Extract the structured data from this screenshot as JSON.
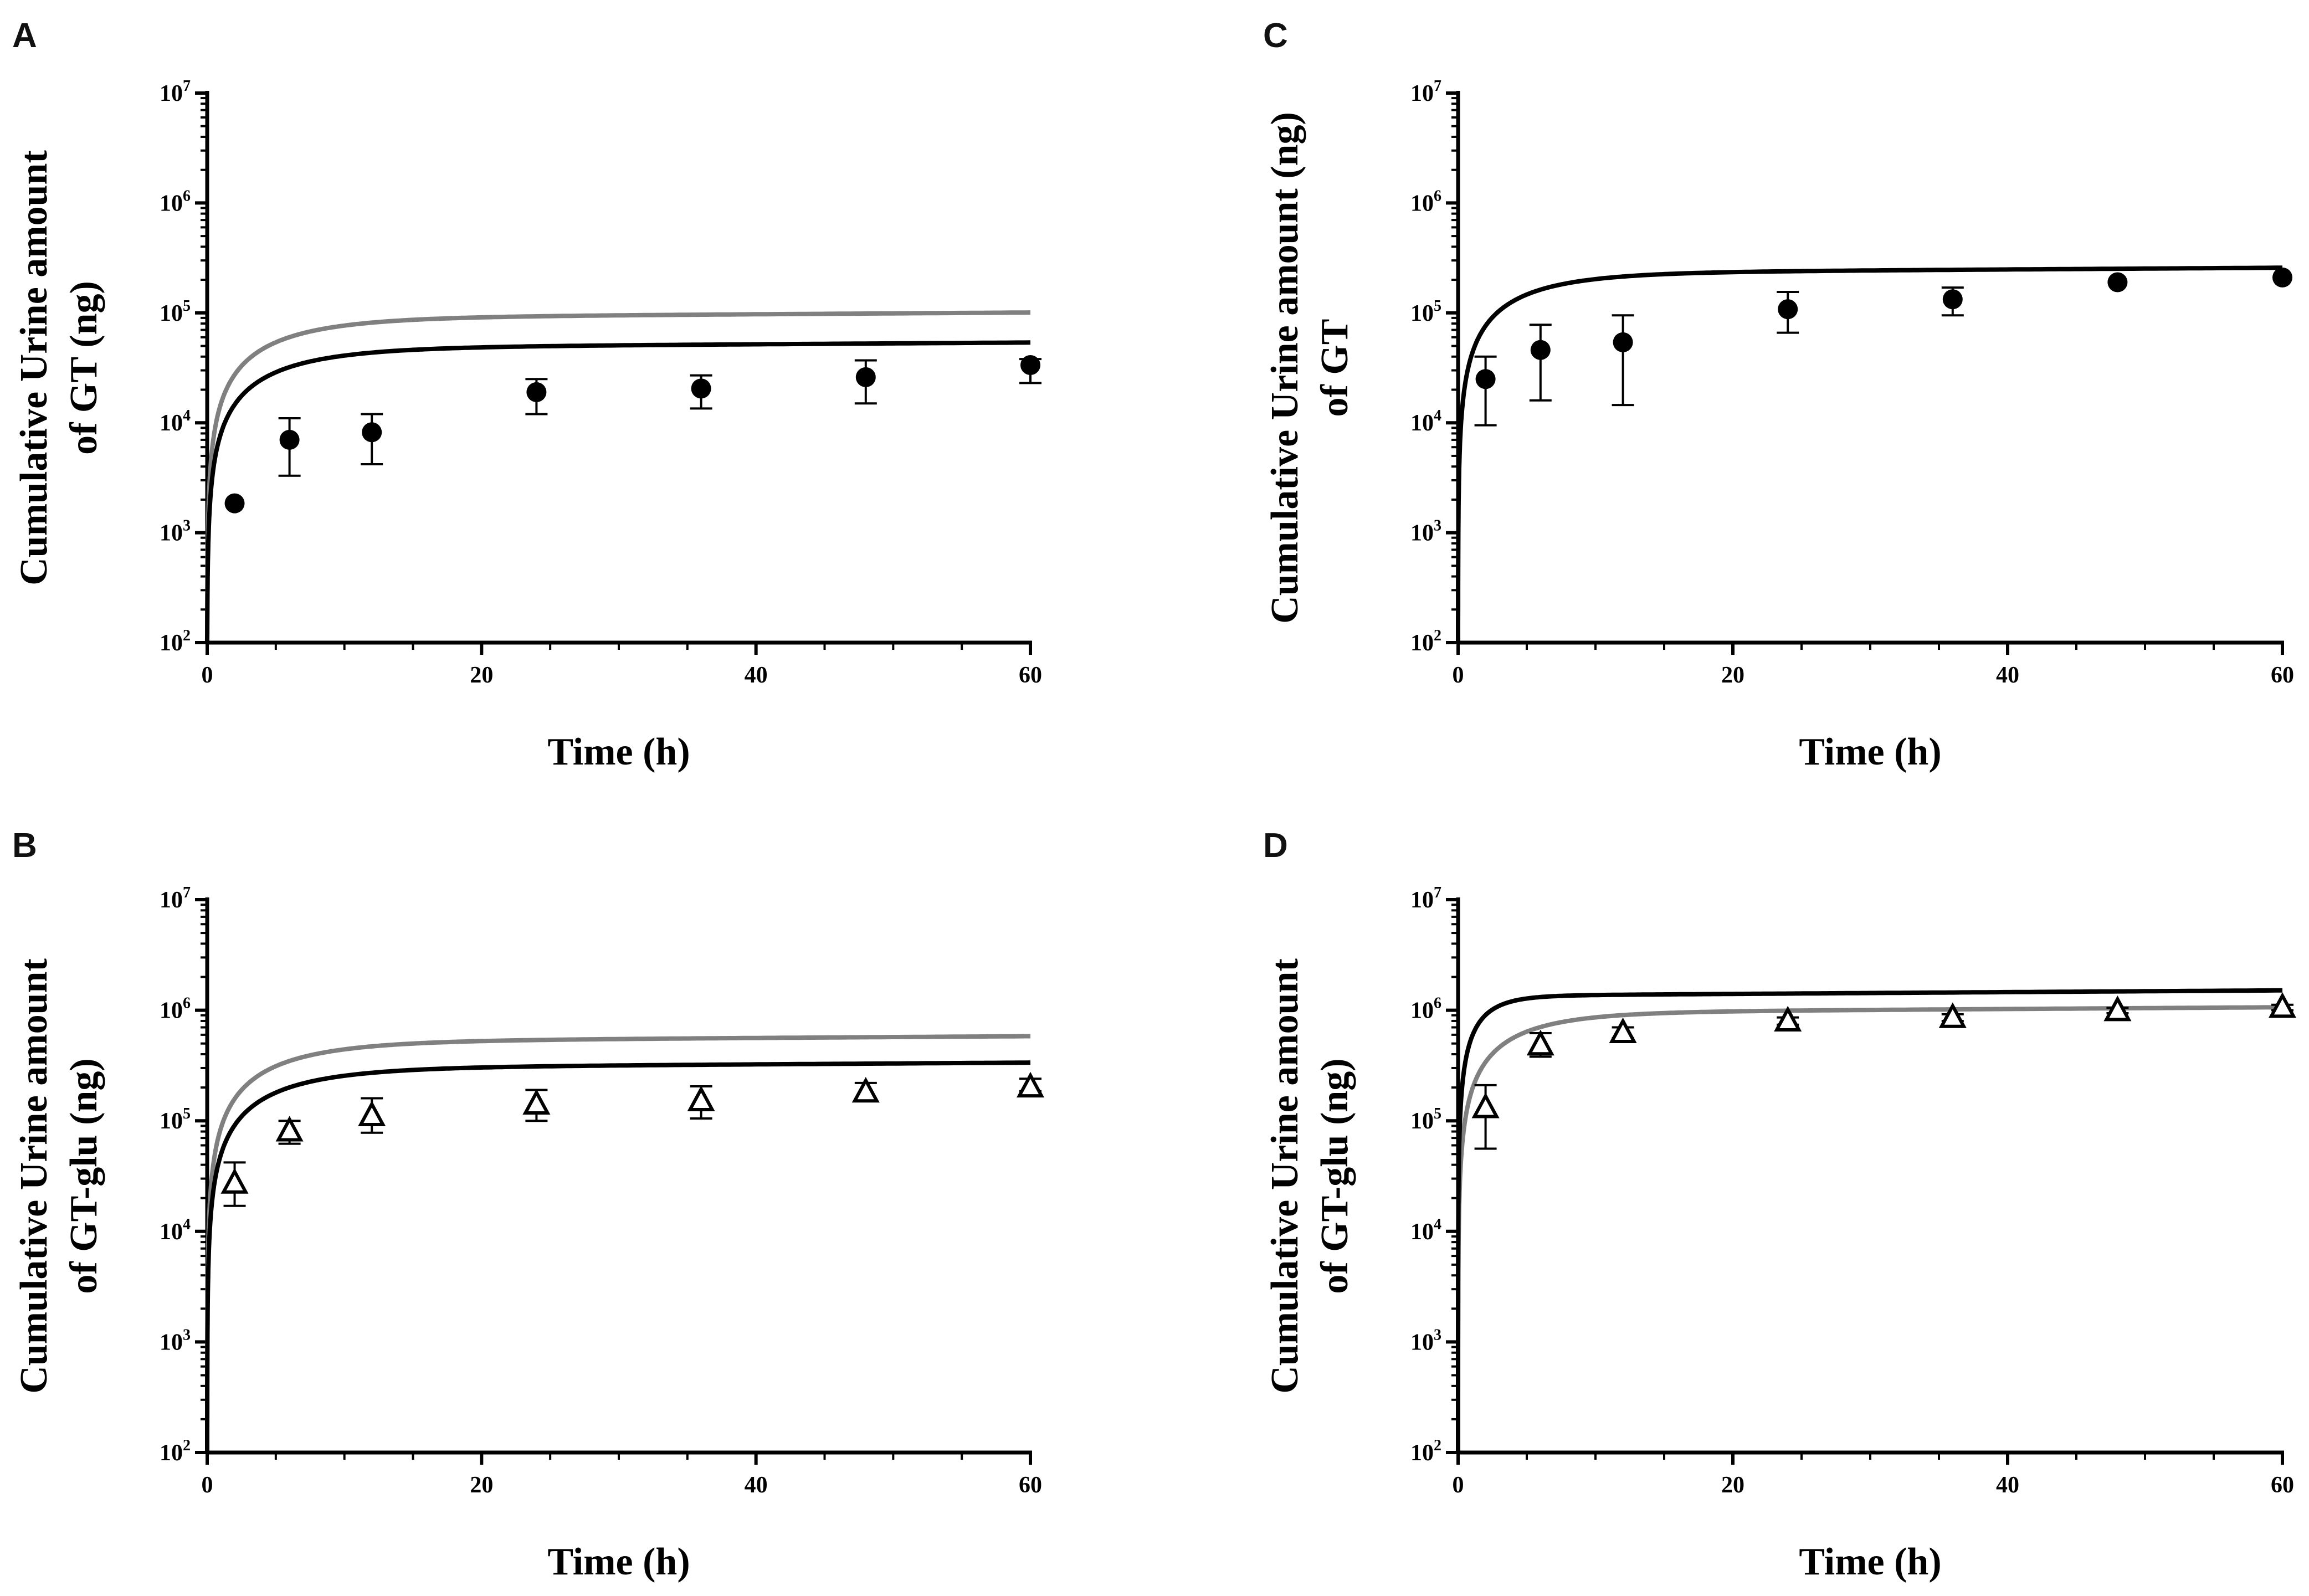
{
  "colors": {
    "axis": "#000000",
    "model_black": "#000000",
    "model_gray": "#808080",
    "background": "#ffffff"
  },
  "chart_data": [
    {
      "panel": "A",
      "type": "line",
      "xlabel": "Time (h)",
      "ylabel_lines": [
        "Cumulative Urine amount",
        "of GT (ng)"
      ],
      "xlim": [
        0,
        60
      ],
      "ylim_log10": [
        2,
        7
      ],
      "yscale": "log",
      "xticks": [
        0,
        20,
        40,
        60
      ],
      "ytick_exponents": [
        2,
        3,
        4,
        5,
        6,
        7
      ],
      "ytick_base": "10",
      "observed": {
        "marker": "filled-circle",
        "x": [
          2,
          6,
          12,
          24,
          36,
          48,
          60
        ],
        "y": [
          1850,
          7000,
          8200,
          19000,
          20500,
          26000,
          33500
        ],
        "y_err_high": [
          null,
          11000,
          12000,
          25000,
          27000,
          37000,
          38000
        ],
        "y_err_low": [
          null,
          3300,
          4200,
          12000,
          13500,
          15000,
          23000
        ]
      },
      "series": [
        {
          "name": "model-gray",
          "color": "#808080",
          "plateau": 90000,
          "k": 0.18,
          "y0": 100
        },
        {
          "name": "model-black",
          "color": "#000000",
          "plateau": 48000,
          "k": 0.18,
          "y0": 100
        }
      ]
    },
    {
      "panel": "B",
      "type": "line",
      "xlabel": "Time (h)",
      "ylabel_lines": [
        "Cumulative Urine amount",
        "of GT-glu (ng)"
      ],
      "xlim": [
        0,
        60
      ],
      "ylim_log10": [
        2,
        7
      ],
      "yscale": "log",
      "xticks": [
        0,
        20,
        40,
        60
      ],
      "ytick_exponents": [
        2,
        3,
        4,
        5,
        6,
        7
      ],
      "ytick_base": "10",
      "observed": {
        "marker": "open-triangle",
        "x": [
          2,
          6,
          12,
          24,
          36,
          48,
          60
        ],
        "y": [
          27000,
          80000,
          110000,
          140000,
          150000,
          180000,
          200000
        ],
        "y_err_high": [
          42000,
          100000,
          160000,
          190000,
          205000,
          220000,
          240000
        ],
        "y_err_low": [
          17000,
          62000,
          78000,
          100000,
          105000,
          160000,
          185000
        ]
      },
      "series": [
        {
          "name": "model-gray",
          "color": "#808080",
          "plateau": 520000,
          "k": 0.18,
          "y0": 100
        },
        {
          "name": "model-black",
          "color": "#000000",
          "plateau": 300000,
          "k": 0.18,
          "y0": 100
        }
      ]
    },
    {
      "panel": "C",
      "type": "line",
      "xlabel": "Time (h)",
      "ylabel_lines": [
        "Cumulative Urine amount (ng)",
        "of GT"
      ],
      "xlim": [
        0,
        60
      ],
      "ylim_log10": [
        2,
        7
      ],
      "yscale": "log",
      "xticks": [
        0,
        20,
        40,
        60
      ],
      "ytick_exponents": [
        2,
        3,
        4,
        5,
        6,
        7
      ],
      "ytick_base": "10",
      "observed": {
        "marker": "filled-circle",
        "x": [
          2,
          6,
          12,
          24,
          36,
          48,
          60
        ],
        "y": [
          25000,
          46000,
          54000,
          108000,
          133000,
          190000,
          210000
        ],
        "y_err_high": [
          40000,
          78000,
          95000,
          155000,
          170000,
          null,
          null
        ],
        "y_err_low": [
          9500,
          16000,
          14500,
          66000,
          95000,
          null,
          null
        ]
      },
      "series": [
        {
          "name": "model-black",
          "color": "#000000",
          "plateau": 230000,
          "k": 0.2,
          "y0": 100
        }
      ]
    },
    {
      "panel": "D",
      "type": "line",
      "xlabel": "Time (h)",
      "ylabel_lines": [
        "Cumulative Urine amount",
        "of GT-glu (ng)"
      ],
      "xlim": [
        0,
        60
      ],
      "ylim_log10": [
        2,
        7
      ],
      "yscale": "log",
      "xticks": [
        0,
        20,
        40,
        60
      ],
      "ytick_exponents": [
        2,
        3,
        4,
        5,
        6,
        7
      ],
      "ytick_base": "10",
      "observed": {
        "marker": "open-triangle",
        "x": [
          2,
          6,
          12,
          24,
          36,
          48,
          60
        ],
        "y": [
          130000,
          480000,
          620000,
          790000,
          850000,
          980000,
          1050000
        ],
        "y_err_high": [
          210000,
          620000,
          700000,
          860000,
          920000,
          1050000,
          1120000
        ],
        "y_err_low": [
          56000,
          380000,
          560000,
          740000,
          800000,
          940000,
          1000000
        ]
      },
      "series": [
        {
          "name": "model-gray",
          "color": "#808080",
          "plateau": 950000,
          "k": 0.22,
          "y0": 100
        },
        {
          "name": "model-black",
          "color": "#000000",
          "plateau": 1350000,
          "k": 0.55,
          "y0": 100
        }
      ]
    }
  ]
}
